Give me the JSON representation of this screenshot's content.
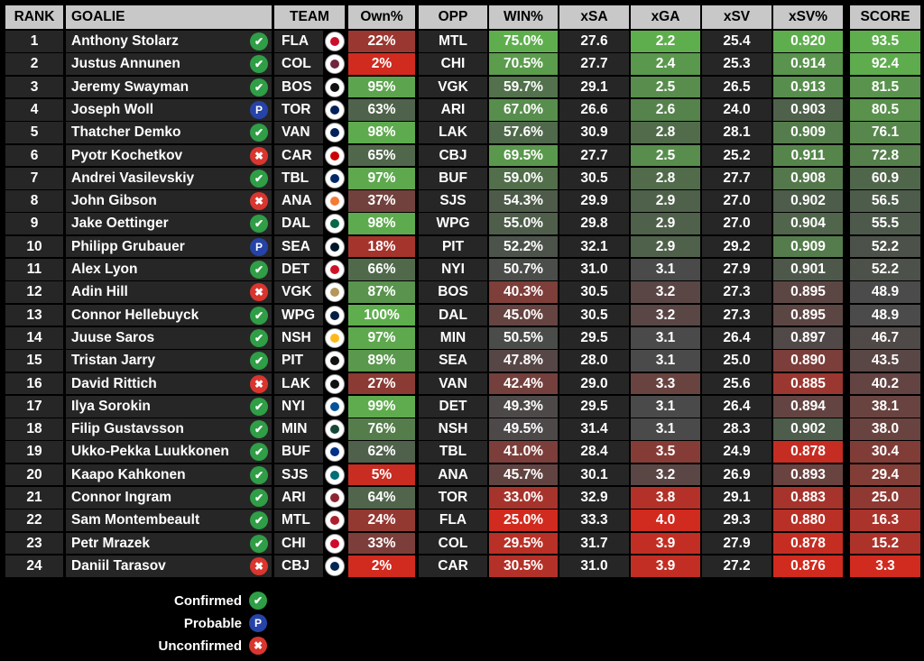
{
  "headers": {
    "rank": "RANK",
    "goalie": "GOALIE",
    "team": "TEAM",
    "own": "Own%",
    "opp": "OPP",
    "win": "WIN%",
    "xsa": "xSA",
    "xga": "xGA",
    "xsv": "xSV",
    "xsvp": "xSV%",
    "score": "SCORE"
  },
  "rows": [
    {
      "rank": "1",
      "goalie": "Anthony Stolarz",
      "status": "confirmed",
      "team": "FLA",
      "own": "22%",
      "opp": "MTL",
      "win": "75.0%",
      "xsa": "27.6",
      "xga": "2.2",
      "xsv": "25.4",
      "xsvp": "0.920",
      "score": "93.5"
    },
    {
      "rank": "2",
      "goalie": "Justus Annunen",
      "status": "confirmed",
      "team": "COL",
      "own": "2%",
      "opp": "CHI",
      "win": "70.5%",
      "xsa": "27.7",
      "xga": "2.4",
      "xsv": "25.3",
      "xsvp": "0.914",
      "score": "92.4"
    },
    {
      "rank": "3",
      "goalie": "Jeremy Swayman",
      "status": "confirmed",
      "team": "BOS",
      "own": "95%",
      "opp": "VGK",
      "win": "59.7%",
      "xsa": "29.1",
      "xga": "2.5",
      "xsv": "26.5",
      "xsvp": "0.913",
      "score": "81.5"
    },
    {
      "rank": "4",
      "goalie": "Joseph Woll",
      "status": "probable",
      "team": "TOR",
      "own": "63%",
      "opp": "ARI",
      "win": "67.0%",
      "xsa": "26.6",
      "xga": "2.6",
      "xsv": "24.0",
      "xsvp": "0.903",
      "score": "80.5"
    },
    {
      "rank": "5",
      "goalie": "Thatcher Demko",
      "status": "confirmed",
      "team": "VAN",
      "own": "98%",
      "opp": "LAK",
      "win": "57.6%",
      "xsa": "30.9",
      "xga": "2.8",
      "xsv": "28.1",
      "xsvp": "0.909",
      "score": "76.1"
    },
    {
      "rank": "6",
      "goalie": "Pyotr Kochetkov",
      "status": "unconfirmed",
      "team": "CAR",
      "own": "65%",
      "opp": "CBJ",
      "win": "69.5%",
      "xsa": "27.7",
      "xga": "2.5",
      "xsv": "25.2",
      "xsvp": "0.911",
      "score": "72.8"
    },
    {
      "rank": "7",
      "goalie": "Andrei Vasilevskiy",
      "status": "confirmed",
      "team": "TBL",
      "own": "97%",
      "opp": "BUF",
      "win": "59.0%",
      "xsa": "30.5",
      "xga": "2.8",
      "xsv": "27.7",
      "xsvp": "0.908",
      "score": "60.9"
    },
    {
      "rank": "8",
      "goalie": "John Gibson",
      "status": "unconfirmed",
      "team": "ANA",
      "own": "37%",
      "opp": "SJS",
      "win": "54.3%",
      "xsa": "29.9",
      "xga": "2.9",
      "xsv": "27.0",
      "xsvp": "0.902",
      "score": "56.5"
    },
    {
      "rank": "9",
      "goalie": "Jake Oettinger",
      "status": "confirmed",
      "team": "DAL",
      "own": "98%",
      "opp": "WPG",
      "win": "55.0%",
      "xsa": "29.8",
      "xga": "2.9",
      "xsv": "27.0",
      "xsvp": "0.904",
      "score": "55.5"
    },
    {
      "rank": "10",
      "goalie": "Philipp Grubauer",
      "status": "probable",
      "team": "SEA",
      "own": "18%",
      "opp": "PIT",
      "win": "52.2%",
      "xsa": "32.1",
      "xga": "2.9",
      "xsv": "29.2",
      "xsvp": "0.909",
      "score": "52.2"
    },
    {
      "rank": "11",
      "goalie": "Alex Lyon",
      "status": "confirmed",
      "team": "DET",
      "own": "66%",
      "opp": "NYI",
      "win": "50.7%",
      "xsa": "31.0",
      "xga": "3.1",
      "xsv": "27.9",
      "xsvp": "0.901",
      "score": "52.2"
    },
    {
      "rank": "12",
      "goalie": "Adin Hill",
      "status": "unconfirmed",
      "team": "VGK",
      "own": "87%",
      "opp": "BOS",
      "win": "40.3%",
      "xsa": "30.5",
      "xga": "3.2",
      "xsv": "27.3",
      "xsvp": "0.895",
      "score": "48.9"
    },
    {
      "rank": "13",
      "goalie": "Connor Hellebuyck",
      "status": "confirmed",
      "team": "WPG",
      "own": "100%",
      "opp": "DAL",
      "win": "45.0%",
      "xsa": "30.5",
      "xga": "3.2",
      "xsv": "27.3",
      "xsvp": "0.895",
      "score": "48.9"
    },
    {
      "rank": "14",
      "goalie": "Juuse Saros",
      "status": "confirmed",
      "team": "NSH",
      "own": "97%",
      "opp": "MIN",
      "win": "50.5%",
      "xsa": "29.5",
      "xga": "3.1",
      "xsv": "26.4",
      "xsvp": "0.897",
      "score": "46.7"
    },
    {
      "rank": "15",
      "goalie": "Tristan Jarry",
      "status": "confirmed",
      "team": "PIT",
      "own": "89%",
      "opp": "SEA",
      "win": "47.8%",
      "xsa": "28.0",
      "xga": "3.1",
      "xsv": "25.0",
      "xsvp": "0.890",
      "score": "43.5"
    },
    {
      "rank": "16",
      "goalie": "David Rittich",
      "status": "unconfirmed",
      "team": "LAK",
      "own": "27%",
      "opp": "VAN",
      "win": "42.4%",
      "xsa": "29.0",
      "xga": "3.3",
      "xsv": "25.6",
      "xsvp": "0.885",
      "score": "40.2"
    },
    {
      "rank": "17",
      "goalie": "Ilya Sorokin",
      "status": "confirmed",
      "team": "NYI",
      "own": "99%",
      "opp": "DET",
      "win": "49.3%",
      "xsa": "29.5",
      "xga": "3.1",
      "xsv": "26.4",
      "xsvp": "0.894",
      "score": "38.1"
    },
    {
      "rank": "18",
      "goalie": "Filip Gustavsson",
      "status": "confirmed",
      "team": "MIN",
      "own": "76%",
      "opp": "NSH",
      "win": "49.5%",
      "xsa": "31.4",
      "xga": "3.1",
      "xsv": "28.3",
      "xsvp": "0.902",
      "score": "38.0"
    },
    {
      "rank": "19",
      "goalie": "Ukko-Pekka Luukkonen",
      "status": "confirmed",
      "team": "BUF",
      "own": "62%",
      "opp": "TBL",
      "win": "41.0%",
      "xsa": "28.4",
      "xga": "3.5",
      "xsv": "24.9",
      "xsvp": "0.878",
      "score": "30.4"
    },
    {
      "rank": "20",
      "goalie": "Kaapo Kahkonen",
      "status": "confirmed",
      "team": "SJS",
      "own": "5%",
      "opp": "ANA",
      "win": "45.7%",
      "xsa": "30.1",
      "xga": "3.2",
      "xsv": "26.9",
      "xsvp": "0.893",
      "score": "29.4"
    },
    {
      "rank": "21",
      "goalie": "Connor Ingram",
      "status": "confirmed",
      "team": "ARI",
      "own": "64%",
      "opp": "TOR",
      "win": "33.0%",
      "xsa": "32.9",
      "xga": "3.8",
      "xsv": "29.1",
      "xsvp": "0.883",
      "score": "25.0"
    },
    {
      "rank": "22",
      "goalie": "Sam Montembeault",
      "status": "confirmed",
      "team": "MTL",
      "own": "24%",
      "opp": "FLA",
      "win": "25.0%",
      "xsa": "33.3",
      "xga": "4.0",
      "xsv": "29.3",
      "xsvp": "0.880",
      "score": "16.3"
    },
    {
      "rank": "23",
      "goalie": "Petr Mrazek",
      "status": "confirmed",
      "team": "CHI",
      "own": "33%",
      "opp": "COL",
      "win": "29.5%",
      "xsa": "31.7",
      "xga": "3.9",
      "xsv": "27.9",
      "xsvp": "0.878",
      "score": "15.2"
    },
    {
      "rank": "24",
      "goalie": "Daniil Tarasov",
      "status": "unconfirmed",
      "team": "CBJ",
      "own": "2%",
      "opp": "CAR",
      "win": "30.5%",
      "xsa": "31.0",
      "xga": "3.9",
      "xsv": "27.2",
      "xsvp": "0.876",
      "score": "3.3"
    }
  ],
  "legend": {
    "confirmed": "Confirmed",
    "probable": "Probable",
    "unconfirmed": "Unconfirmed"
  },
  "status_icons": {
    "confirmed": "checkmark-icon",
    "probable": "p-letter-icon",
    "unconfirmed": "x-mark-icon"
  },
  "status_glyphs": {
    "confirmed": "✔",
    "probable": "P",
    "unconfirmed": "✖"
  },
  "team_colors": {
    "FLA": "#c8102e",
    "COL": "#6f263d",
    "BOS": "#111111",
    "TOR": "#00205b",
    "VAN": "#00205b",
    "CAR": "#cc0000",
    "TBL": "#002868",
    "ANA": "#f47a38",
    "DAL": "#006847",
    "SEA": "#001628",
    "DET": "#ce1126",
    "VGK": "#b4975a",
    "WPG": "#041e42",
    "NSH": "#ffb81c",
    "PIT": "#111111",
    "LAK": "#111111",
    "NYI": "#00539b",
    "MIN": "#154734",
    "BUF": "#003087",
    "SJS": "#006d75",
    "ARI": "#8c2633",
    "MTL": "#af1e2d",
    "CHI": "#cf0a2c",
    "CBJ": "#002654"
  },
  "colors": {
    "good": "#5fae4e",
    "mid": "#4a4a4a",
    "bad": "#d12a1e",
    "header": "#c8c8c8"
  }
}
